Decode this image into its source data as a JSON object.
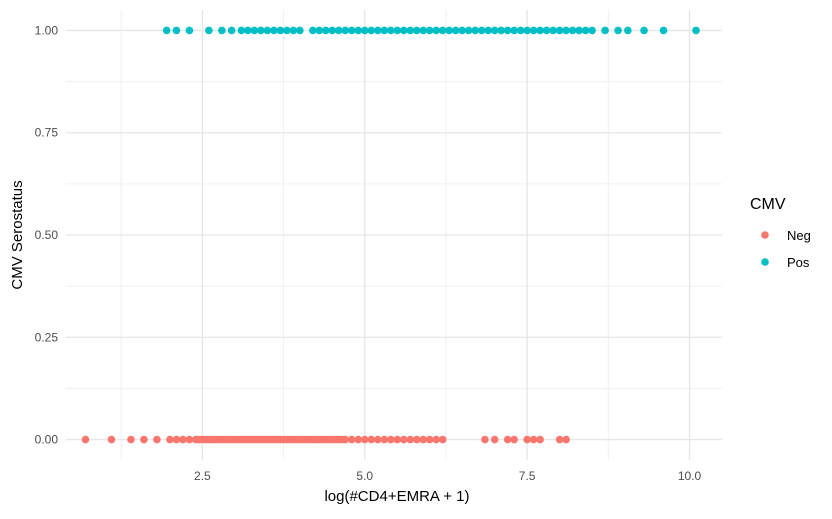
{
  "chart_data": {
    "type": "scatter",
    "title": "",
    "xlabel": "log(#CD4+EMRA + 1)",
    "ylabel": "CMV Serostatus",
    "xlim": [
      0.4,
      10.5
    ],
    "ylim": [
      -0.05,
      1.05
    ],
    "x_ticks": [
      2.5,
      5.0,
      7.5,
      10.0
    ],
    "x_tick_labels": [
      "2.5",
      "5.0",
      "7.5",
      "10.0"
    ],
    "y_ticks": [
      0.0,
      0.25,
      0.5,
      0.75,
      1.0
    ],
    "y_tick_labels": [
      "0.00",
      "0.25",
      "0.50",
      "0.75",
      "1.00"
    ],
    "grid": true,
    "legend": {
      "title": "CMV",
      "position": "right"
    },
    "series": [
      {
        "name": "Neg",
        "color": "#F8766D",
        "y": 0,
        "x": [
          0.7,
          1.1,
          1.4,
          1.6,
          1.8,
          2.0,
          2.1,
          2.2,
          2.3,
          2.4,
          2.45,
          2.5,
          2.55,
          2.6,
          2.65,
          2.7,
          2.75,
          2.8,
          2.85,
          2.9,
          2.95,
          3.0,
          3.05,
          3.1,
          3.15,
          3.2,
          3.25,
          3.3,
          3.35,
          3.4,
          3.45,
          3.5,
          3.55,
          3.6,
          3.65,
          3.7,
          3.75,
          3.8,
          3.85,
          3.9,
          3.95,
          4.0,
          4.05,
          4.1,
          4.15,
          4.2,
          4.25,
          4.3,
          4.35,
          4.4,
          4.45,
          4.5,
          4.55,
          4.6,
          4.65,
          4.7,
          4.8,
          4.9,
          5.0,
          5.1,
          5.2,
          5.3,
          5.4,
          5.5,
          5.6,
          5.7,
          5.8,
          5.9,
          6.0,
          6.1,
          6.2,
          6.85,
          7.0,
          7.2,
          7.3,
          7.5,
          7.6,
          7.7,
          8.0,
          8.1
        ]
      },
      {
        "name": "Pos",
        "color": "#00BFC4",
        "y": 1,
        "x": [
          1.95,
          2.1,
          2.3,
          2.6,
          2.8,
          2.95,
          3.1,
          3.2,
          3.3,
          3.4,
          3.5,
          3.6,
          3.7,
          3.8,
          3.9,
          4.0,
          4.2,
          4.3,
          4.4,
          4.5,
          4.6,
          4.7,
          4.8,
          4.9,
          5.0,
          5.1,
          5.2,
          5.3,
          5.4,
          5.5,
          5.6,
          5.7,
          5.8,
          5.9,
          6.0,
          6.1,
          6.2,
          6.3,
          6.4,
          6.5,
          6.6,
          6.7,
          6.8,
          6.9,
          7.0,
          7.1,
          7.2,
          7.3,
          7.4,
          7.5,
          7.6,
          7.7,
          7.8,
          7.9,
          8.0,
          8.1,
          8.2,
          8.3,
          8.4,
          8.5,
          8.7,
          8.9,
          9.05,
          9.3,
          9.6,
          10.1
        ]
      }
    ]
  }
}
